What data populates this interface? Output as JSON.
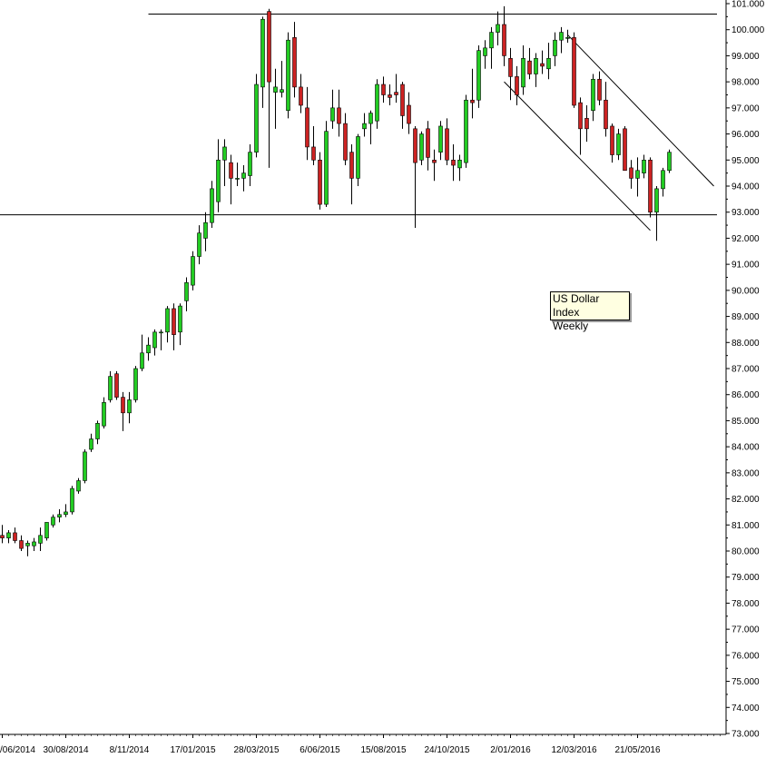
{
  "chart_data": {
    "type": "candlestick",
    "title": "US Dollar Index",
    "subtitle": "Weekly",
    "ylim": [
      73,
      101
    ],
    "y_ticks": [
      "73.000",
      "74.000",
      "75.000",
      "76.000",
      "77.000",
      "78.000",
      "79.000",
      "80.000",
      "81.000",
      "82.000",
      "83.000",
      "84.000",
      "85.000",
      "86.000",
      "87.000",
      "88.000",
      "89.000",
      "90.000",
      "91.000",
      "92.000",
      "93.000",
      "94.000",
      "95.000",
      "96.000",
      "97.000",
      "98.000",
      "99.000",
      "100.000",
      "101.000"
    ],
    "x_ticks": [
      "/06/2014",
      "30/08/2014",
      "8/11/2014",
      "17/01/2015",
      "28/03/2015",
      "6/06/2015",
      "15/08/2015",
      "24/10/2015",
      "2/01/2016",
      "12/03/2016",
      "21/05/2016"
    ],
    "x_tick_weeks": [
      0,
      10,
      20,
      30,
      40,
      50,
      60,
      70,
      80,
      90,
      100
    ],
    "grid": false,
    "colors": {
      "up": "#22cc22",
      "down": "#cc2222",
      "line": "#000000",
      "background": "#ffffff"
    },
    "candles": [
      {
        "o": 80.6,
        "h": 81.0,
        "l": 80.3,
        "c": 80.5
      },
      {
        "o": 80.5,
        "h": 80.8,
        "l": 80.3,
        "c": 80.7
      },
      {
        "o": 80.7,
        "h": 80.9,
        "l": 80.3,
        "c": 80.4
      },
      {
        "o": 80.4,
        "h": 80.6,
        "l": 80.0,
        "c": 80.1
      },
      {
        "o": 80.2,
        "h": 80.4,
        "l": 79.8,
        "c": 80.3
      },
      {
        "o": 80.2,
        "h": 80.5,
        "l": 80.0,
        "c": 80.35
      },
      {
        "o": 80.3,
        "h": 80.9,
        "l": 80.0,
        "c": 80.6
      },
      {
        "o": 80.5,
        "h": 81.1,
        "l": 80.4,
        "c": 81.1
      },
      {
        "o": 81.0,
        "h": 81.4,
        "l": 80.9,
        "c": 81.3
      },
      {
        "o": 81.3,
        "h": 81.6,
        "l": 81.1,
        "c": 81.4
      },
      {
        "o": 81.4,
        "h": 81.8,
        "l": 81.3,
        "c": 81.5
      },
      {
        "o": 81.5,
        "h": 82.5,
        "l": 81.4,
        "c": 82.4
      },
      {
        "o": 82.3,
        "h": 82.8,
        "l": 82.2,
        "c": 82.7
      },
      {
        "o": 82.7,
        "h": 83.9,
        "l": 82.6,
        "c": 83.8
      },
      {
        "o": 83.9,
        "h": 84.5,
        "l": 83.8,
        "c": 84.3
      },
      {
        "o": 84.3,
        "h": 85.0,
        "l": 84.1,
        "c": 84.9
      },
      {
        "o": 84.8,
        "h": 85.9,
        "l": 84.7,
        "c": 85.7
      },
      {
        "o": 85.8,
        "h": 86.9,
        "l": 85.7,
        "c": 86.7
      },
      {
        "o": 86.8,
        "h": 86.9,
        "l": 85.8,
        "c": 85.9
      },
      {
        "o": 85.9,
        "h": 86.1,
        "l": 84.6,
        "c": 85.3
      },
      {
        "o": 85.3,
        "h": 86.1,
        "l": 84.9,
        "c": 85.8
      },
      {
        "o": 85.8,
        "h": 87.1,
        "l": 85.7,
        "c": 87.0
      },
      {
        "o": 87.0,
        "h": 88.3,
        "l": 86.9,
        "c": 87.6
      },
      {
        "o": 87.6,
        "h": 88.2,
        "l": 87.3,
        "c": 87.9
      },
      {
        "o": 87.8,
        "h": 88.5,
        "l": 87.5,
        "c": 88.4
      },
      {
        "o": 88.4,
        "h": 88.5,
        "l": 87.7,
        "c": 88.4
      },
      {
        "o": 88.4,
        "h": 89.4,
        "l": 88.0,
        "c": 89.3
      },
      {
        "o": 89.3,
        "h": 89.5,
        "l": 87.7,
        "c": 88.3
      },
      {
        "o": 88.4,
        "h": 89.5,
        "l": 87.9,
        "c": 89.4
      },
      {
        "o": 89.6,
        "h": 90.5,
        "l": 89.2,
        "c": 90.3
      },
      {
        "o": 90.2,
        "h": 91.5,
        "l": 90.0,
        "c": 91.3
      },
      {
        "o": 91.3,
        "h": 92.5,
        "l": 91.0,
        "c": 92.2
      },
      {
        "o": 92.0,
        "h": 93.0,
        "l": 91.5,
        "c": 92.6
      },
      {
        "o": 92.6,
        "h": 94.2,
        "l": 92.4,
        "c": 93.9
      },
      {
        "o": 93.4,
        "h": 95.8,
        "l": 93.0,
        "c": 95.0
      },
      {
        "o": 95.0,
        "h": 95.8,
        "l": 94.0,
        "c": 95.5
      },
      {
        "o": 94.9,
        "h": 95.2,
        "l": 93.3,
        "c": 94.3
      },
      {
        "o": 94.3,
        "h": 94.9,
        "l": 94.0,
        "c": 94.3
      },
      {
        "o": 94.3,
        "h": 94.8,
        "l": 93.8,
        "c": 94.5
      },
      {
        "o": 94.4,
        "h": 95.6,
        "l": 94.0,
        "c": 95.3
      },
      {
        "o": 95.3,
        "h": 98.3,
        "l": 95.1,
        "c": 97.9
      },
      {
        "o": 97.8,
        "h": 100.5,
        "l": 97.0,
        "c": 100.4
      },
      {
        "o": 100.7,
        "h": 100.8,
        "l": 94.7,
        "c": 98.0
      },
      {
        "o": 97.6,
        "h": 98.5,
        "l": 96.2,
        "c": 97.8
      },
      {
        "o": 97.6,
        "h": 98.8,
        "l": 97.4,
        "c": 97.7
      },
      {
        "o": 96.9,
        "h": 99.9,
        "l": 96.6,
        "c": 99.6
      },
      {
        "o": 99.7,
        "h": 100.3,
        "l": 97.4,
        "c": 97.8
      },
      {
        "o": 97.8,
        "h": 98.3,
        "l": 96.8,
        "c": 97.1
      },
      {
        "o": 97.0,
        "h": 97.8,
        "l": 95.0,
        "c": 95.5
      },
      {
        "o": 95.5,
        "h": 96.3,
        "l": 94.8,
        "c": 95.0
      },
      {
        "o": 95.0,
        "h": 95.3,
        "l": 93.1,
        "c": 93.3
      },
      {
        "o": 93.3,
        "h": 96.5,
        "l": 93.2,
        "c": 96.1
      },
      {
        "o": 96.5,
        "h": 97.7,
        "l": 96.2,
        "c": 97.0
      },
      {
        "o": 97.0,
        "h": 97.7,
        "l": 95.9,
        "c": 96.4
      },
      {
        "o": 96.4,
        "h": 96.8,
        "l": 94.8,
        "c": 95.0
      },
      {
        "o": 95.3,
        "h": 95.6,
        "l": 93.3,
        "c": 94.3
      },
      {
        "o": 94.3,
        "h": 96.0,
        "l": 94.0,
        "c": 95.9
      },
      {
        "o": 96.2,
        "h": 96.8,
        "l": 95.9,
        "c": 96.4
      },
      {
        "o": 96.4,
        "h": 96.9,
        "l": 95.6,
        "c": 96.8
      },
      {
        "o": 96.5,
        "h": 98.1,
        "l": 96.2,
        "c": 97.9
      },
      {
        "o": 97.9,
        "h": 98.2,
        "l": 97.2,
        "c": 97.5
      },
      {
        "o": 97.5,
        "h": 97.9,
        "l": 97.1,
        "c": 97.4
      },
      {
        "o": 97.6,
        "h": 98.3,
        "l": 97.2,
        "c": 97.5
      },
      {
        "o": 97.9,
        "h": 98.0,
        "l": 96.2,
        "c": 96.7
      },
      {
        "o": 97.1,
        "h": 97.6,
        "l": 96.0,
        "c": 96.4
      },
      {
        "o": 96.2,
        "h": 96.3,
        "l": 92.4,
        "c": 94.9
      },
      {
        "o": 95.0,
        "h": 96.1,
        "l": 94.8,
        "c": 96.0
      },
      {
        "o": 96.2,
        "h": 96.5,
        "l": 94.6,
        "c": 95.1
      },
      {
        "o": 95.0,
        "h": 95.4,
        "l": 94.2,
        "c": 94.9
      },
      {
        "o": 95.3,
        "h": 96.5,
        "l": 95.0,
        "c": 96.3
      },
      {
        "o": 96.2,
        "h": 96.6,
        "l": 94.8,
        "c": 95.0
      },
      {
        "o": 95.0,
        "h": 95.6,
        "l": 94.2,
        "c": 94.8
      },
      {
        "o": 94.7,
        "h": 95.2,
        "l": 94.2,
        "c": 95.0
      },
      {
        "o": 94.9,
        "h": 97.5,
        "l": 94.7,
        "c": 97.3
      },
      {
        "o": 97.3,
        "h": 98.5,
        "l": 96.6,
        "c": 97.2
      },
      {
        "o": 97.3,
        "h": 99.4,
        "l": 97.0,
        "c": 99.2
      },
      {
        "o": 99.0,
        "h": 99.6,
        "l": 98.5,
        "c": 99.3
      },
      {
        "o": 99.3,
        "h": 100.1,
        "l": 98.5,
        "c": 99.9
      },
      {
        "o": 99.9,
        "h": 100.7,
        "l": 99.4,
        "c": 100.2
      },
      {
        "o": 100.2,
        "h": 100.9,
        "l": 98.6,
        "c": 99.0
      },
      {
        "o": 98.9,
        "h": 99.3,
        "l": 97.3,
        "c": 98.2
      },
      {
        "o": 98.2,
        "h": 98.6,
        "l": 97.1,
        "c": 97.5
      },
      {
        "o": 97.8,
        "h": 99.4,
        "l": 97.5,
        "c": 98.9
      },
      {
        "o": 98.8,
        "h": 99.3,
        "l": 98.1,
        "c": 98.3
      },
      {
        "o": 98.3,
        "h": 99.1,
        "l": 97.8,
        "c": 98.9
      },
      {
        "o": 98.7,
        "h": 99.2,
        "l": 98.3,
        "c": 98.6
      },
      {
        "o": 98.5,
        "h": 99.5,
        "l": 98.1,
        "c": 98.9
      },
      {
        "o": 99.0,
        "h": 99.9,
        "l": 98.6,
        "c": 99.6
      },
      {
        "o": 99.6,
        "h": 100.1,
        "l": 99.1,
        "c": 99.9
      },
      {
        "o": 99.7,
        "h": 100.0,
        "l": 99.5,
        "c": 99.7
      },
      {
        "o": 99.7,
        "h": 99.9,
        "l": 97.0,
        "c": 97.1
      },
      {
        "o": 97.2,
        "h": 97.4,
        "l": 95.2,
        "c": 96.2
      },
      {
        "o": 96.6,
        "h": 97.1,
        "l": 95.7,
        "c": 96.2
      },
      {
        "o": 96.9,
        "h": 98.3,
        "l": 96.5,
        "c": 98.1
      },
      {
        "o": 98.1,
        "h": 98.4,
        "l": 97.1,
        "c": 97.3
      },
      {
        "o": 97.3,
        "h": 98.0,
        "l": 95.9,
        "c": 96.2
      },
      {
        "o": 96.3,
        "h": 96.4,
        "l": 94.9,
        "c": 95.2
      },
      {
        "o": 95.2,
        "h": 96.2,
        "l": 95.0,
        "c": 96.0
      },
      {
        "o": 96.2,
        "h": 96.3,
        "l": 94.8,
        "c": 94.6
      },
      {
        "o": 94.7,
        "h": 95.0,
        "l": 93.9,
        "c": 94.3
      },
      {
        "o": 94.3,
        "h": 95.1,
        "l": 93.6,
        "c": 94.6
      },
      {
        "o": 94.5,
        "h": 95.2,
        "l": 94.3,
        "c": 95.0
      },
      {
        "o": 95.0,
        "h": 95.1,
        "l": 92.8,
        "c": 93.0
      },
      {
        "o": 93.0,
        "h": 94.0,
        "l": 91.9,
        "c": 93.9
      },
      {
        "o": 93.9,
        "h": 94.7,
        "l": 93.6,
        "c": 94.6
      },
      {
        "o": 94.6,
        "h": 95.4,
        "l": 94.5,
        "c": 95.3
      }
    ],
    "trendlines": [
      {
        "name": "resistance-line",
        "x1": 23,
        "y1": 100.6,
        "x2": 112.5,
        "y2": 100.6
      },
      {
        "name": "support-line",
        "x1": -1,
        "y1": 92.9,
        "x2": 112.5,
        "y2": 92.9
      },
      {
        "name": "channel-upper",
        "x1": 89,
        "y1": 99.8,
        "x2": 112,
        "y2": 94.0
      },
      {
        "name": "channel-lower",
        "x1": 79,
        "y1": 98.0,
        "x2": 102,
        "y2": 92.3
      }
    ]
  }
}
